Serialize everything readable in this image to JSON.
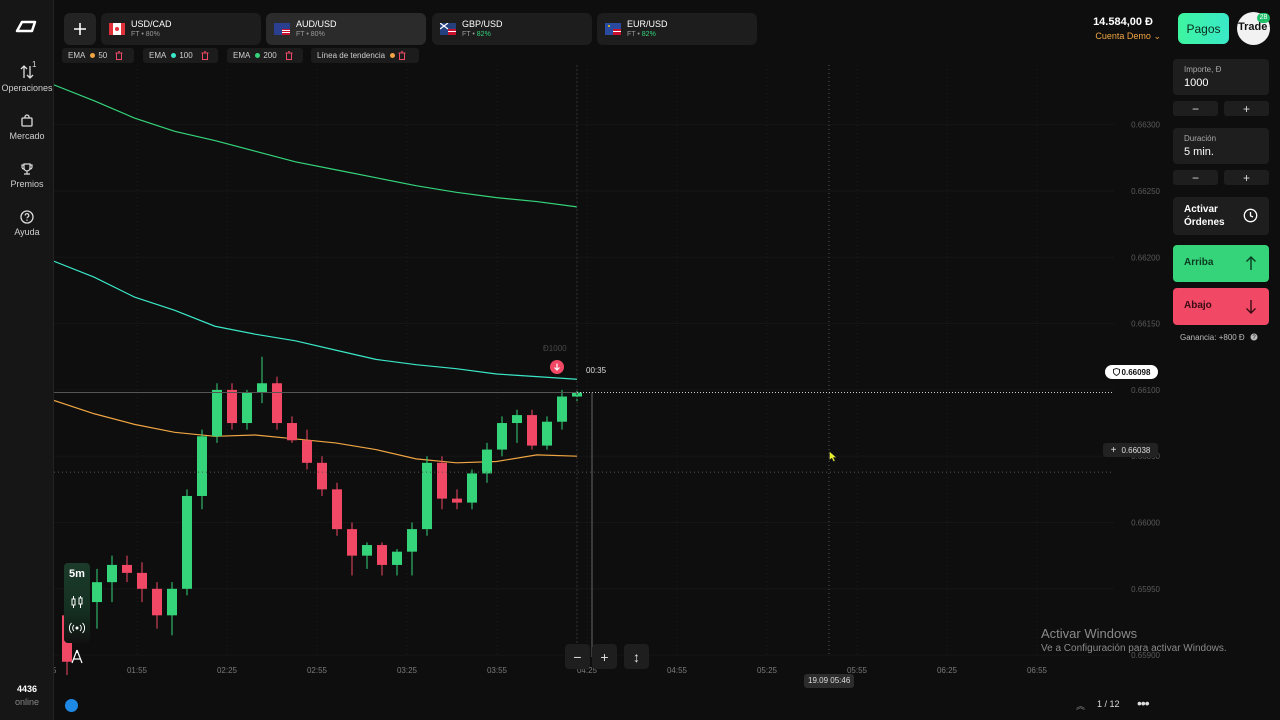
{
  "sidebar": {
    "items": [
      {
        "label": "Operaciones",
        "badge": "1",
        "icon": "arrows-updown-icon"
      },
      {
        "label": "Mercado",
        "icon": "shop-icon"
      },
      {
        "label": "Premios",
        "icon": "trophy-icon"
      },
      {
        "label": "Ayuda",
        "icon": "help-icon"
      }
    ],
    "online_count": "4436",
    "online_label": "online"
  },
  "tabs": [
    {
      "name": "USD/CAD",
      "type": "FT",
      "payout": "80%",
      "active": false
    },
    {
      "name": "AUD/USD",
      "type": "FT",
      "payout": "80%",
      "active": true
    },
    {
      "name": "GBP/USD",
      "type": "FT",
      "payout": "82%",
      "active": false
    },
    {
      "name": "EUR/USD",
      "type": "FT",
      "payout": "82%",
      "active": false
    }
  ],
  "header": {
    "balance": "14.584,00 Ð",
    "account": "Cuenta Demo",
    "pagos": "Pagos",
    "avatar_text": "Trade",
    "avatar_badge": "28"
  },
  "indicators": [
    {
      "name": "EMA",
      "value": "50",
      "color": "#f0a543"
    },
    {
      "name": "EMA",
      "value": "100",
      "color": "#3ae8c8"
    },
    {
      "name": "EMA",
      "value": "200",
      "color": "#35d47a"
    },
    {
      "name": "Línea de tendencia",
      "value": "",
      "color": "#f0a543"
    }
  ],
  "chart_data": {
    "type": "candlestick",
    "y_ticks": [
      "0.66300",
      "0.66250",
      "0.66200",
      "0.66150",
      "0.66100",
      "0.66050",
      "0.66000",
      "0.65950",
      "0.65900"
    ],
    "x_ticks": [
      "01:55",
      "02:25",
      "02:55",
      "03:25",
      "03:55",
      "04:25",
      "04:55",
      "05:25",
      "05:55",
      "06:25",
      "06:55"
    ],
    "x_partial": "5",
    "current_price": "0.66098",
    "crosshair_price": "0.66038",
    "timer": "00:35",
    "crosshair_time": "19.09 05:46",
    "trade_marker_label": "Ð1000",
    "colors": {
      "up": "#35d47a",
      "down": "#f04865",
      "ema50": "#f0a543",
      "ema100": "#3ae8c8",
      "ema200": "#35d47a"
    },
    "ylim": [
      0.65885,
      0.66345
    ],
    "candles": [
      {
        "o": 0.6593,
        "h": 0.6595,
        "l": 0.65885,
        "c": 0.65895
      },
      {
        "o": 0.6593,
        "h": 0.65945,
        "l": 0.65915,
        "c": 0.6594
      },
      {
        "o": 0.6594,
        "h": 0.65965,
        "l": 0.6592,
        "c": 0.65955
      },
      {
        "o": 0.65955,
        "h": 0.65975,
        "l": 0.6594,
        "c": 0.65968
      },
      {
        "o": 0.65968,
        "h": 0.65975,
        "l": 0.65955,
        "c": 0.65962
      },
      {
        "o": 0.65962,
        "h": 0.6597,
        "l": 0.6594,
        "c": 0.6595
      },
      {
        "o": 0.6595,
        "h": 0.65955,
        "l": 0.6592,
        "c": 0.6593
      },
      {
        "o": 0.6593,
        "h": 0.65955,
        "l": 0.65915,
        "c": 0.6595
      },
      {
        "o": 0.6595,
        "h": 0.66025,
        "l": 0.65945,
        "c": 0.6602
      },
      {
        "o": 0.6602,
        "h": 0.6607,
        "l": 0.6601,
        "c": 0.66065
      },
      {
        "o": 0.66065,
        "h": 0.66105,
        "l": 0.6606,
        "c": 0.661
      },
      {
        "o": 0.661,
        "h": 0.66105,
        "l": 0.6607,
        "c": 0.66075
      },
      {
        "o": 0.66075,
        "h": 0.661,
        "l": 0.6607,
        "c": 0.66098
      },
      {
        "o": 0.66098,
        "h": 0.66125,
        "l": 0.6609,
        "c": 0.66105
      },
      {
        "o": 0.66105,
        "h": 0.6611,
        "l": 0.6607,
        "c": 0.66075
      },
      {
        "o": 0.66075,
        "h": 0.6608,
        "l": 0.6606,
        "c": 0.66062
      },
      {
        "o": 0.66062,
        "h": 0.6607,
        "l": 0.6604,
        "c": 0.66045
      },
      {
        "o": 0.66045,
        "h": 0.6605,
        "l": 0.6602,
        "c": 0.66025
      },
      {
        "o": 0.66025,
        "h": 0.6603,
        "l": 0.6599,
        "c": 0.65995
      },
      {
        "o": 0.65995,
        "h": 0.66,
        "l": 0.6596,
        "c": 0.65975
      },
      {
        "o": 0.65975,
        "h": 0.65985,
        "l": 0.65965,
        "c": 0.65983
      },
      {
        "o": 0.65983,
        "h": 0.65985,
        "l": 0.6596,
        "c": 0.65968
      },
      {
        "o": 0.65968,
        "h": 0.6598,
        "l": 0.6596,
        "c": 0.65978
      },
      {
        "o": 0.65978,
        "h": 0.66,
        "l": 0.6596,
        "c": 0.65995
      },
      {
        "o": 0.65995,
        "h": 0.6605,
        "l": 0.6599,
        "c": 0.66045
      },
      {
        "o": 0.66045,
        "h": 0.6605,
        "l": 0.6601,
        "c": 0.66018
      },
      {
        "o": 0.66018,
        "h": 0.66025,
        "l": 0.6601,
        "c": 0.66015
      },
      {
        "o": 0.66015,
        "h": 0.6604,
        "l": 0.6601,
        "c": 0.66037
      },
      {
        "o": 0.66037,
        "h": 0.6606,
        "l": 0.6603,
        "c": 0.66055
      },
      {
        "o": 0.66055,
        "h": 0.6608,
        "l": 0.6605,
        "c": 0.66075
      },
      {
        "o": 0.66075,
        "h": 0.66085,
        "l": 0.6606,
        "c": 0.66081
      },
      {
        "o": 0.66081,
        "h": 0.66085,
        "l": 0.66055,
        "c": 0.66058
      },
      {
        "o": 0.66058,
        "h": 0.6608,
        "l": 0.66055,
        "c": 0.66076
      },
      {
        "o": 0.66076,
        "h": 0.661,
        "l": 0.6607,
        "c": 0.66095
      },
      {
        "o": 0.66095,
        "h": 0.661,
        "l": 0.6609,
        "c": 0.66098
      }
    ],
    "ema50": [
      0.66092,
      0.66082,
      0.66074,
      0.66068,
      0.66065,
      0.66066,
      0.66063,
      0.6606,
      0.66055,
      0.66048,
      0.66045,
      0.66046,
      0.66051,
      0.6605
    ],
    "ema100": [
      0.66197,
      0.66185,
      0.6617,
      0.6616,
      0.66148,
      0.66142,
      0.66137,
      0.6613,
      0.66123,
      0.66119,
      0.66116,
      0.66112,
      0.6611,
      0.66108
    ],
    "ema200": [
      0.6633,
      0.66318,
      0.66305,
      0.66295,
      0.66288,
      0.6628,
      0.66272,
      0.66266,
      0.6626,
      0.66254,
      0.66249,
      0.66245,
      0.66242,
      0.66238
    ]
  },
  "controls": {
    "timeframe": "5m",
    "zoom_out": "−",
    "zoom_in": "+",
    "fit": "↕"
  },
  "panel": {
    "amount_label": "Importe, Ð",
    "amount_value": "1000",
    "duration_label": "Duración",
    "duration_value": "5 min.",
    "minus": "−",
    "plus": "+",
    "orders_line1": "Activar",
    "orders_line2": "Órdenes",
    "up_label": "Arriba",
    "down_label": "Abajo",
    "profit": "Ganancia: +800 Ð",
    "up_color": "#35d47a",
    "down_color": "#f04865"
  },
  "footer": {
    "win_activate_title": "Activar Windows",
    "win_activate_sub": "Ve a Configuración para activar Windows.",
    "page": "1 / 12",
    "more": "•••"
  }
}
